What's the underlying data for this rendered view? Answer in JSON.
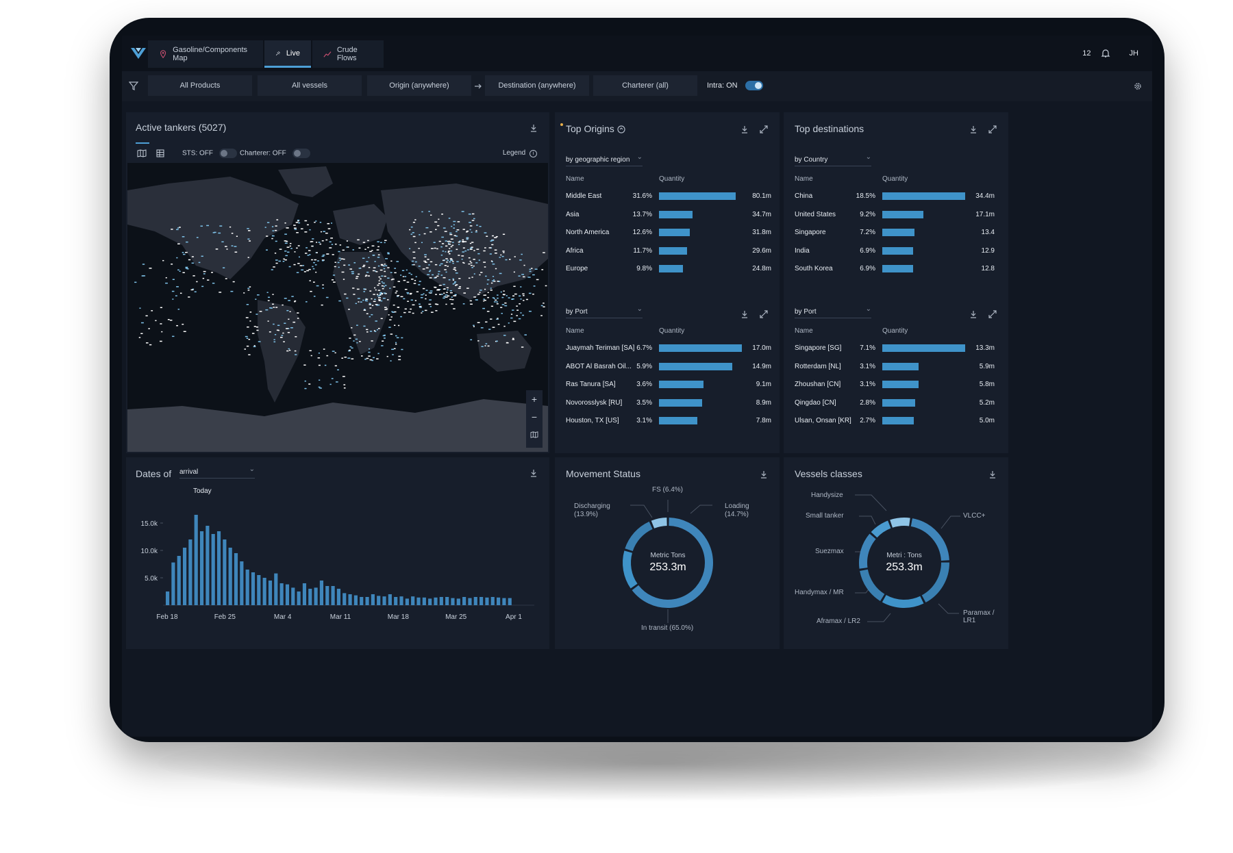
{
  "topbar": {
    "tabs": [
      {
        "label": "Gasoline/Components Map",
        "icon": "map-pin-icon"
      },
      {
        "label": "Live",
        "icon": "satellite-icon",
        "active": true
      },
      {
        "label": "Crude Flows",
        "icon": "trend-line-icon"
      }
    ],
    "notifications_count": "12",
    "user_initials": "JH"
  },
  "filters": {
    "products": "All Products",
    "vessels": "All vessels",
    "origin": "Origin (anywhere)",
    "destination": "Destination (anywhere)",
    "charterer": "Charterer (all)",
    "intra_label": "Intra: ON"
  },
  "active_tankers": {
    "title": "Active tankers (5027)",
    "sts_label": "STS: OFF",
    "charterer_label": "Charterer: OFF",
    "legend_label": "Legend",
    "zoom_in": "+",
    "zoom_out": "−"
  },
  "top_origins": {
    "title": "Top Origins",
    "region_select": "by geographic region",
    "col_name": "Name",
    "col_quantity": "Quantity",
    "regions": [
      {
        "name": "Middle East",
        "pct": "31.6%",
        "share": 0.316,
        "qty": "80.1m"
      },
      {
        "name": "Asia",
        "pct": "13.7%",
        "share": 0.137,
        "qty": "34.7m"
      },
      {
        "name": "North America",
        "pct": "12.6%",
        "share": 0.126,
        "qty": "31.8m"
      },
      {
        "name": "Africa",
        "pct": "11.7%",
        "share": 0.117,
        "qty": "29.6m"
      },
      {
        "name": "Europe",
        "pct": "9.8%",
        "share": 0.098,
        "qty": "24.8m"
      }
    ],
    "port_select": "by Port",
    "ports": [
      {
        "name": "Juaymah Teriman [SA]",
        "pct": "6.7%",
        "share": 0.067,
        "qty": "17.0m"
      },
      {
        "name": "ABOT Al Basrah Oil...",
        "pct": "5.9%",
        "share": 0.059,
        "qty": "14.9m"
      },
      {
        "name": "Ras Tanura [SA]",
        "pct": "3.6%",
        "share": 0.036,
        "qty": "9.1m"
      },
      {
        "name": "Novorosslysk [RU]",
        "pct": "3.5%",
        "share": 0.035,
        "qty": "8.9m"
      },
      {
        "name": "Houston, TX [US]",
        "pct": "3.1%",
        "share": 0.031,
        "qty": "7.8m"
      }
    ]
  },
  "top_destinations": {
    "title": "Top destinations",
    "country_select": "by Country",
    "col_name": "Name",
    "col_quantity": "Quantity",
    "countries": [
      {
        "name": "China",
        "pct": "18.5%",
        "share": 0.185,
        "qty": "34.4m"
      },
      {
        "name": "United States",
        "pct": "9.2%",
        "share": 0.092,
        "qty": "17.1m"
      },
      {
        "name": "Singapore",
        "pct": "7.2%",
        "share": 0.072,
        "qty": "13.4"
      },
      {
        "name": "India",
        "pct": "6.9%",
        "share": 0.069,
        "qty": "12.9"
      },
      {
        "name": "South Korea",
        "pct": "6.9%",
        "share": 0.069,
        "qty": "12.8"
      }
    ],
    "port_select": "by Port",
    "ports": [
      {
        "name": "Singapore [SG]",
        "pct": "7.1%",
        "share": 0.071,
        "qty": "13.3m"
      },
      {
        "name": "Rotterdam [NL]",
        "pct": "3.1%",
        "share": 0.031,
        "qty": "5.9m"
      },
      {
        "name": "Zhoushan [CN]",
        "pct": "3.1%",
        "share": 0.031,
        "qty": "5.8m"
      },
      {
        "name": "Qingdao [CN]",
        "pct": "2.8%",
        "share": 0.028,
        "qty": "5.2m"
      },
      {
        "name": "Ulsan, Onsan [KR]",
        "pct": "2.7%",
        "share": 0.027,
        "qty": "5.0m"
      }
    ]
  },
  "dates_of": {
    "title": "Dates of",
    "select": "arrival"
  },
  "movement_status": {
    "title": "Movement Status",
    "center_label": "Metric Tons",
    "center_value": "253.3m",
    "labels": {
      "fs": "FS (6.4%)",
      "discharging": "Discharging",
      "discharging_pct": "(13.9%)",
      "loading": "Loading",
      "loading_pct": "(14.7%)",
      "in_transit": "In transit  (65.0%)"
    }
  },
  "vessel_classes": {
    "title": "Vessels classes",
    "center_label": "Metri : Tons",
    "center_value": "253.3m",
    "labels": {
      "handysize": "Handysize",
      "small_tanker": "Small tanker",
      "suezmax": "Suezmax",
      "handymax": "Handymax / MR",
      "aframax": "Aframax / LR2",
      "vlcc": "VLCC+",
      "paramax": "Paramax / LR1"
    }
  },
  "chart_data": [
    {
      "type": "bar",
      "title": "Dates of",
      "annotation": "Today",
      "x_tick_labels": [
        "Feb 18",
        "Feb 25",
        "Mar 4",
        "Mar 11",
        "Mar 18",
        "Mar 25",
        "Apr 1"
      ],
      "y_tick_labels": [
        "15.0k",
        "10.0k",
        "5.0k"
      ],
      "ylim": [
        0,
        20000
      ],
      "today_index": 6,
      "values": [
        2500,
        7800,
        9000,
        10500,
        12000,
        16500,
        13500,
        14500,
        13000,
        13500,
        12000,
        10500,
        9500,
        8000,
        6500,
        6000,
        5500,
        5000,
        4500,
        5800,
        4000,
        3800,
        3200,
        2500,
        4000,
        3000,
        3200,
        4500,
        3500,
        3500,
        3000,
        2200,
        2000,
        1800,
        1500,
        1500,
        2000,
        1700,
        1600,
        2000,
        1500,
        1600,
        1200,
        1600,
        1400,
        1400,
        1200,
        1400,
        1500,
        1500,
        1300,
        1200,
        1500,
        1300,
        1500,
        1500,
        1400,
        1500,
        1400,
        1300,
        1300
      ]
    },
    {
      "type": "pie",
      "title": "Movement Status",
      "categories": [
        "In transit",
        "Loading",
        "Discharging",
        "FS"
      ],
      "values": [
        65.0,
        14.7,
        13.9,
        6.4
      ]
    },
    {
      "type": "pie",
      "title": "Vessels classes",
      "categories": [
        "VLCC+",
        "Paramax / LR1",
        "Aframax / LR2",
        "Handymax / MR",
        "Suezmax",
        "Small tanker",
        "Handysize"
      ],
      "values": [
        22,
        18,
        16,
        14,
        14,
        8,
        8
      ]
    }
  ],
  "colors": {
    "accent": "#3f93c9",
    "panel": "#171e2b",
    "background": "#111722",
    "ring": "#3f93c9",
    "ring_light": "#8fc4e6"
  }
}
